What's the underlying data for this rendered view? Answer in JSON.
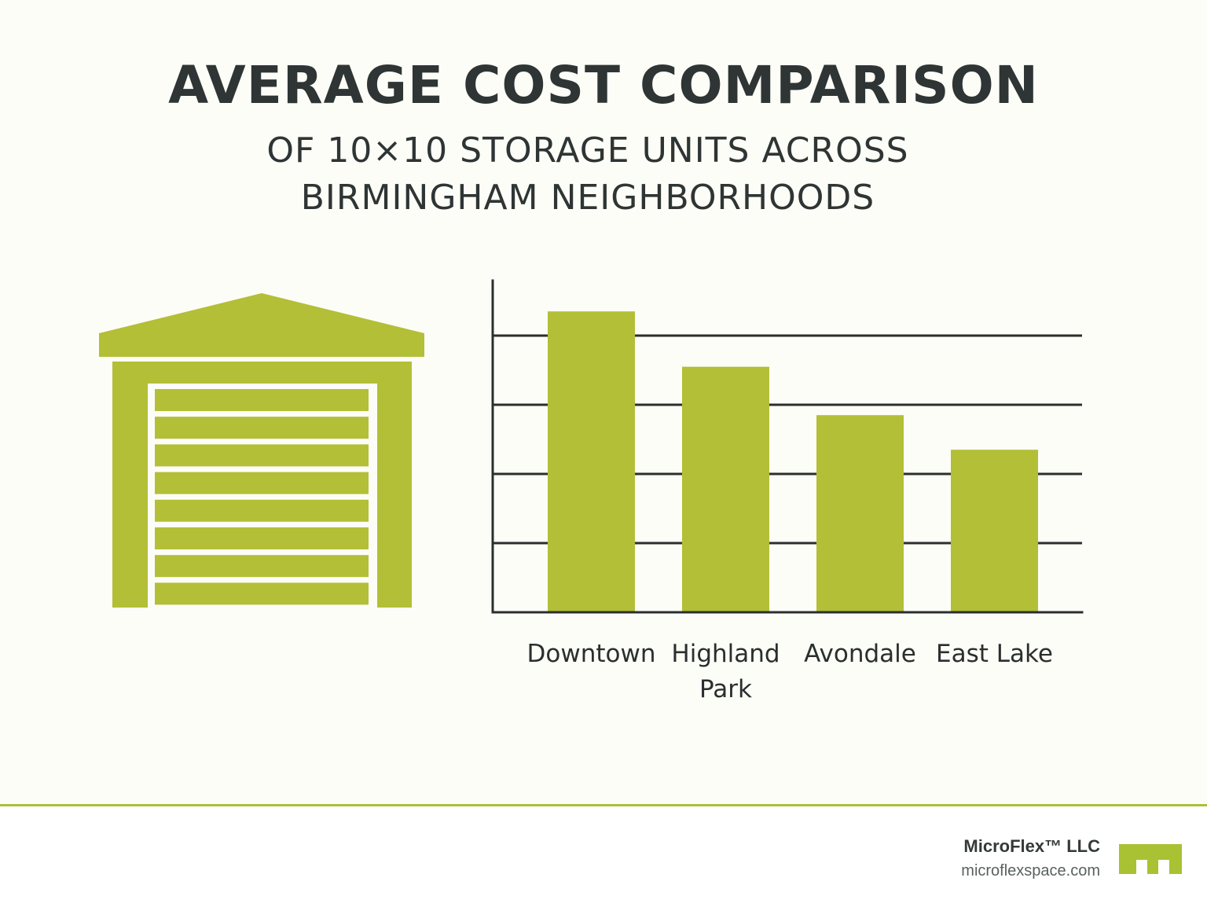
{
  "chart_data": {
    "type": "bar",
    "title": "AVERAGE COST COMPARISON",
    "subtitle_lines": [
      "OF 10×10 STORAGE UNITS ACROSS",
      "BIRMINGHAM NEIGHBORHOODS"
    ],
    "categories": [
      [
        "Downtown"
      ],
      [
        "Highland",
        "Park"
      ],
      [
        "Avondale"
      ],
      [
        "East Lake"
      ]
    ],
    "values": [
      4.35,
      3.55,
      2.85,
      2.35
    ],
    "ylim": [
      0,
      5
    ],
    "grid_lines": [
      1,
      2,
      3,
      4
    ],
    "bar_color": "#b3bf36",
    "axis_color": "#2a2f2e"
  },
  "footer": {
    "company": "MicroFlex™ LLC",
    "website": "microflexspace.com",
    "accent_color": "#a9c13a",
    "logo_color": "#a8c233"
  }
}
